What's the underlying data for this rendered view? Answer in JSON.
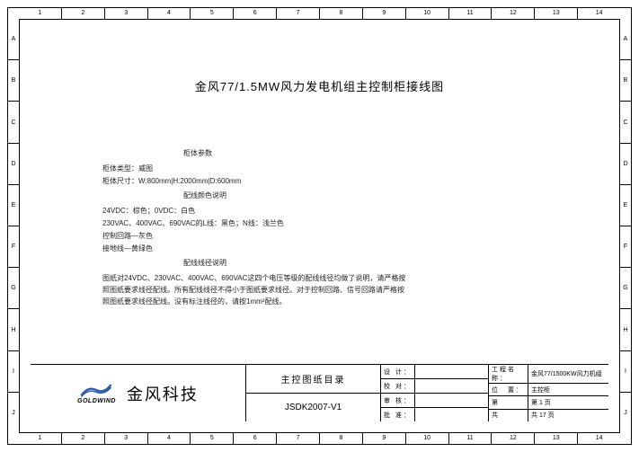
{
  "main_title": "金风77/1.5MW风力发电机组主控制柜接线图",
  "sections": {
    "cabinet_params_title": "柜体参数",
    "cabinet_type": "柜体类型：威图",
    "cabinet_size": "柜体尺寸：W:800mm|H:2000mm|D:600mm",
    "wire_color_title": "配线颜色说明",
    "wire_color_1": "24VDC：棕色；0VDC：白色",
    "wire_color_2": "230VAC、400VAC、690VAC的L线：黑色；N线：浅兰色",
    "wire_color_3": "控制回路—灰色",
    "wire_color_4": "接地线—黄绿色",
    "wire_diam_title": "配线线径说明",
    "wire_diam_para": "图纸对24VDC、230VAC、400VAC、690VAC这四个电压等级的配线线径均做了说明，请严格按照图纸要求线径配线。所有配线线径不得小于图纸要求线径。对于控制回路、信号回路请严格按照图纸要求线径配线。没有标注线径的，请按1mm²配线。"
  },
  "logo": {
    "company_cn": "金风科技",
    "company_en": "GOLDWIND"
  },
  "titleblock": {
    "doc_title": "主控图纸目录",
    "doc_no": "JSDK2007-V1",
    "design_label": "设 计：",
    "check_label": "校 对：",
    "review_label": "审 核：",
    "approve_label": "批 准：",
    "project_label": "工程名称：",
    "project_val": "金风77/1500KW风力机组",
    "position_label": "位　置：",
    "position_val": "主控柜",
    "page_label": "第",
    "page_val": "第 1 页",
    "total_label": "共",
    "total_val": "共 17 页"
  },
  "ruler": {
    "cols": [
      "1",
      "2",
      "3",
      "4",
      "5",
      "6",
      "7",
      "8",
      "9",
      "10",
      "11",
      "12",
      "13",
      "14"
    ],
    "rows": [
      "A",
      "B",
      "C",
      "D",
      "E",
      "F",
      "G",
      "H",
      "I",
      "J"
    ]
  },
  "colors": {
    "border": "#000000",
    "bg": "#ffffff",
    "text": "#000000"
  }
}
